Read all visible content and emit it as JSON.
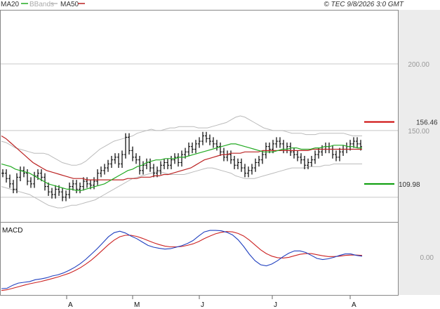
{
  "legend": {
    "ma20": "MA20",
    "bbands": "BBands",
    "ma50": "MA50",
    "timestamp": "© TEC 9/8/2026 3:0 GMT"
  },
  "macd_label": "MACD",
  "colors": {
    "ma20": "#22aa22",
    "bbands": "#bbbbbb",
    "ma50": "#bb2222",
    "price": "#000000",
    "macd": "#1f3fbf",
    "signal": "#cc2222",
    "resistance": "#cc0000",
    "support": "#009900",
    "grid": "#c8c8c8",
    "axis_panel": "#ececec"
  },
  "levels": {
    "resistance": {
      "value": 156.46,
      "label": "156.46"
    },
    "support": {
      "value": 109.98,
      "label": "109.98"
    }
  },
  "chart_data": [
    {
      "type": "line",
      "title": "",
      "y_ticks": [
        {
          "value": 200,
          "label": "200.00"
        },
        {
          "value": 150,
          "label": "150.00"
        }
      ],
      "x_ticks": [
        "A",
        "M",
        "J",
        "J",
        "A"
      ],
      "ylim": [
        82,
        240
      ],
      "grid": true,
      "series": [
        {
          "name": "price",
          "style": "ohlc-bars",
          "values": [
            118,
            114,
            110,
            106,
            115,
            120,
            118,
            112,
            110,
            116,
            118,
            115,
            108,
            104,
            102,
            106,
            104,
            100,
            102,
            108,
            110,
            106,
            108,
            112,
            110,
            109,
            112,
            118,
            120,
            122,
            125,
            128,
            130,
            125,
            132,
            145,
            135,
            130,
            128,
            120,
            124,
            126,
            122,
            118,
            120,
            124,
            126,
            124,
            128,
            130,
            126,
            132,
            134,
            138,
            136,
            140,
            142,
            146,
            144,
            142,
            140,
            138,
            134,
            130,
            132,
            128,
            124,
            126,
            122,
            118,
            120,
            122,
            126,
            128,
            132,
            138,
            136,
            140,
            142,
            140,
            136,
            138,
            134,
            132,
            130,
            128,
            124,
            126,
            128,
            132,
            134,
            136,
            138,
            136,
            132,
            130,
            134,
            136,
            138,
            140,
            142,
            140,
            138
          ]
        },
        {
          "name": "MA20",
          "values": [
            125,
            124,
            123,
            121,
            120,
            119,
            118,
            116,
            114,
            112,
            110,
            109,
            108,
            107,
            106,
            106,
            105,
            105,
            106,
            107,
            108,
            109,
            110,
            112,
            114,
            116,
            118,
            120,
            121,
            123,
            124,
            126,
            127,
            128,
            128,
            129,
            129,
            129,
            130,
            130,
            131,
            132,
            133,
            134,
            135,
            136,
            137,
            138,
            139,
            140,
            140,
            139,
            138,
            137,
            136,
            135,
            134,
            134,
            134,
            135,
            136,
            136,
            137,
            137,
            136,
            136,
            136,
            137,
            137,
            138,
            138,
            139,
            139,
            139,
            138,
            138,
            137,
            137
          ]
        },
        {
          "name": "BBands-upper",
          "values": [
            142,
            141,
            139,
            137,
            136,
            135,
            134,
            133,
            133,
            133,
            132,
            130,
            128,
            126,
            125,
            124,
            124,
            125,
            127,
            130,
            133,
            136,
            138,
            140,
            142,
            143,
            144,
            145,
            146,
            148,
            149,
            150,
            151,
            150,
            150,
            151,
            152,
            152,
            153,
            153,
            153,
            153,
            152,
            152,
            152,
            153,
            154,
            155,
            156,
            158,
            160,
            161,
            160,
            158,
            156,
            154,
            152,
            151,
            150,
            150,
            150,
            149,
            148,
            148,
            148,
            147,
            147,
            147,
            148,
            148,
            148,
            148,
            148,
            148,
            147,
            146,
            146,
            146
          ]
        },
        {
          "name": "BBands-lower",
          "values": [
            108,
            107,
            106,
            105,
            104,
            103,
            102,
            100,
            98,
            96,
            94,
            93,
            92,
            92,
            93,
            94,
            94,
            95,
            96,
            97,
            98,
            100,
            102,
            104,
            106,
            108,
            110,
            112,
            114,
            115,
            116,
            117,
            118,
            119,
            119,
            118,
            117,
            117,
            117,
            117,
            118,
            119,
            120,
            121,
            122,
            122,
            121,
            120,
            119,
            118,
            116,
            115,
            114,
            114,
            114,
            115,
            116,
            117,
            118,
            119,
            120,
            121,
            122,
            122,
            122,
            122,
            123,
            123,
            123,
            124,
            124,
            125,
            125,
            125,
            125,
            125,
            125,
            125
          ]
        },
        {
          "name": "MA50",
          "values": [
            146,
            144,
            141,
            138,
            135,
            132,
            129,
            126,
            124,
            122,
            120,
            119,
            118,
            117,
            116,
            115,
            114,
            114,
            114,
            113,
            113,
            113,
            113,
            113,
            113,
            113,
            113,
            113,
            114,
            114,
            114,
            115,
            115,
            115,
            116,
            116,
            117,
            117,
            118,
            119,
            120,
            121,
            122,
            124,
            126,
            128,
            129,
            130,
            131,
            132,
            132,
            133,
            133,
            133,
            134,
            134,
            134,
            134,
            135,
            135,
            135,
            135,
            135,
            135,
            135,
            135,
            135,
            135,
            135,
            136,
            136,
            136,
            136,
            136,
            136,
            136,
            136,
            136,
            136,
            136,
            136
          ]
        }
      ]
    },
    {
      "type": "line",
      "title": "MACD",
      "y_ticks": [
        {
          "value": 0,
          "label": "0.00"
        }
      ],
      "ylim": [
        -10,
        9
      ],
      "series": [
        {
          "name": "MACD",
          "values": [
            -8.5,
            -8.4,
            -7.6,
            -7.0,
            -6.8,
            -6.6,
            -6.1,
            -5.9,
            -5.6,
            -5.1,
            -4.8,
            -4.3,
            -3.6,
            -2.8,
            -1.8,
            -0.6,
            0.8,
            2.2,
            3.8,
            5.4,
            6.5,
            6.9,
            6.4,
            5.6,
            4.9,
            4.0,
            3.1,
            2.6,
            2.3,
            2.1,
            2.2,
            2.6,
            3.0,
            3.6,
            4.4,
            5.6,
            6.7,
            7.1,
            7.1,
            7.0,
            6.6,
            5.9,
            4.6,
            2.8,
            0.7,
            -1.0,
            -2.1,
            -2.4,
            -1.9,
            -1.0,
            0.1,
            1.0,
            1.6,
            1.6,
            1.2,
            0.4,
            -0.4,
            -0.7,
            -0.5,
            -0.1,
            0.4,
            0.8,
            0.8,
            0.4,
            0.2
          ]
        },
        {
          "name": "Signal",
          "values": [
            -9.0,
            -8.8,
            -8.4,
            -8.0,
            -7.6,
            -7.2,
            -6.9,
            -6.6,
            -6.2,
            -5.8,
            -5.4,
            -4.9,
            -4.4,
            -3.7,
            -2.9,
            -1.9,
            -0.8,
            0.5,
            1.9,
            3.3,
            4.5,
            5.4,
            5.8,
            5.8,
            5.5,
            5.0,
            4.4,
            3.8,
            3.3,
            2.9,
            2.7,
            2.7,
            2.8,
            3.1,
            3.5,
            4.1,
            4.9,
            5.6,
            6.2,
            6.6,
            6.8,
            6.7,
            6.3,
            5.6,
            4.5,
            3.2,
            1.9,
            0.9,
            0.2,
            -0.2,
            -0.3,
            -0.1,
            0.3,
            0.7,
            0.9,
            0.9,
            0.6,
            0.3,
            0.1,
            0.1,
            0.2,
            0.4,
            0.5,
            0.5,
            0.4
          ]
        }
      ]
    }
  ]
}
